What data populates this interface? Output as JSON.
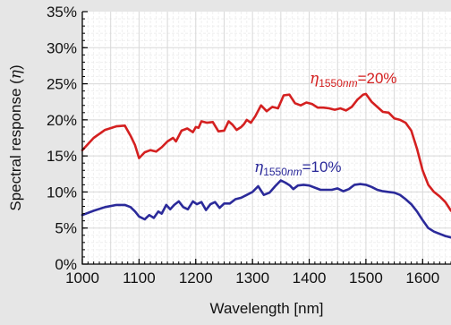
{
  "chart_data": {
    "type": "line",
    "title": "",
    "xlabel": "Wavelength [nm]",
    "ylabel_prefix": "Spectral response (",
    "ylabel_symbol": "η",
    "ylabel_suffix": ")",
    "xlim": [
      1000,
      1650
    ],
    "ylim": [
      0,
      35
    ],
    "x_ticks": [
      1000,
      1100,
      1200,
      1300,
      1400,
      1500,
      1600
    ],
    "x_tick_labels": [
      "1000",
      "1100",
      "1200",
      "1300",
      "1400",
      "1500",
      "1600"
    ],
    "y_ticks": [
      0,
      5,
      10,
      15,
      20,
      25,
      30,
      35
    ],
    "y_tick_labels": [
      "0%",
      "5%",
      "10%",
      "15%",
      "20%",
      "25%",
      "30%",
      "35%"
    ],
    "grid": true,
    "legend": "none",
    "series": [
      {
        "color": "#d42020",
        "x": [
          1000,
          1020,
          1040,
          1060,
          1075,
          1085,
          1093,
          1100,
          1110,
          1120,
          1130,
          1140,
          1150,
          1160,
          1165,
          1175,
          1185,
          1195,
          1200,
          1205,
          1210,
          1220,
          1230,
          1240,
          1250,
          1258,
          1265,
          1272,
          1280,
          1285,
          1290,
          1297,
          1305,
          1315,
          1325,
          1335,
          1345,
          1355,
          1365,
          1375,
          1385,
          1395,
          1405,
          1415,
          1425,
          1435,
          1445,
          1455,
          1465,
          1475,
          1485,
          1495,
          1500,
          1510,
          1520,
          1530,
          1540,
          1550,
          1560,
          1570,
          1580,
          1590,
          1600,
          1610,
          1620,
          1630,
          1640,
          1650
        ],
        "values": [
          15.8,
          17.5,
          18.6,
          19.1,
          19.2,
          17.8,
          16.5,
          14.7,
          15.5,
          15.8,
          15.6,
          16.2,
          17.0,
          17.5,
          17.0,
          18.5,
          18.8,
          18.3,
          19.0,
          18.9,
          19.8,
          19.6,
          19.7,
          18.4,
          18.5,
          19.8,
          19.3,
          18.6,
          19.0,
          19.4,
          20.0,
          19.6,
          20.5,
          22.0,
          21.2,
          21.8,
          21.6,
          23.4,
          23.5,
          22.3,
          22.0,
          22.4,
          22.2,
          21.7,
          21.7,
          21.6,
          21.4,
          21.6,
          21.3,
          21.8,
          22.8,
          23.5,
          23.6,
          22.5,
          21.8,
          21.1,
          21.0,
          20.2,
          20.0,
          19.6,
          18.5,
          16.0,
          13.0,
          11.0,
          10.0,
          9.4,
          8.6,
          7.4
        ]
      },
      {
        "color": "#2b2a9a",
        "x": [
          1000,
          1020,
          1040,
          1060,
          1075,
          1085,
          1093,
          1100,
          1110,
          1118,
          1126,
          1134,
          1140,
          1148,
          1155,
          1162,
          1170,
          1178,
          1186,
          1195,
          1202,
          1210,
          1218,
          1226,
          1234,
          1242,
          1250,
          1260,
          1270,
          1280,
          1290,
          1300,
          1310,
          1320,
          1330,
          1340,
          1350,
          1358,
          1366,
          1372,
          1380,
          1390,
          1400,
          1410,
          1420,
          1430,
          1440,
          1450,
          1460,
          1470,
          1480,
          1490,
          1500,
          1510,
          1520,
          1530,
          1540,
          1550,
          1560,
          1570,
          1580,
          1590,
          1600,
          1610,
          1620,
          1630,
          1640,
          1650
        ],
        "values": [
          6.8,
          7.4,
          7.9,
          8.2,
          8.2,
          7.9,
          7.3,
          6.6,
          6.2,
          6.8,
          6.4,
          7.3,
          7.0,
          8.2,
          7.6,
          8.2,
          8.7,
          7.9,
          7.6,
          8.7,
          8.3,
          8.6,
          7.5,
          8.3,
          8.6,
          7.8,
          8.4,
          8.4,
          9.0,
          9.2,
          9.6,
          10.0,
          10.8,
          9.6,
          9.9,
          10.8,
          11.6,
          11.3,
          10.9,
          10.4,
          10.9,
          11.0,
          10.9,
          10.6,
          10.3,
          10.3,
          10.3,
          10.5,
          10.1,
          10.4,
          11.0,
          11.1,
          11.0,
          10.7,
          10.3,
          10.1,
          10.0,
          9.9,
          9.6,
          9.0,
          8.3,
          7.3,
          6.1,
          5.0,
          4.5,
          4.2,
          3.9,
          3.7
        ]
      }
    ],
    "annotations": [
      {
        "symbol": "η",
        "sub_value": "1550",
        "sub_unit": "nm",
        "text": "=20%",
        "color": "#d42020"
      },
      {
        "symbol": "η",
        "sub_value": "1550",
        "sub_unit": "nm",
        "text": "=10%",
        "color": "#2b2a9a"
      }
    ]
  }
}
